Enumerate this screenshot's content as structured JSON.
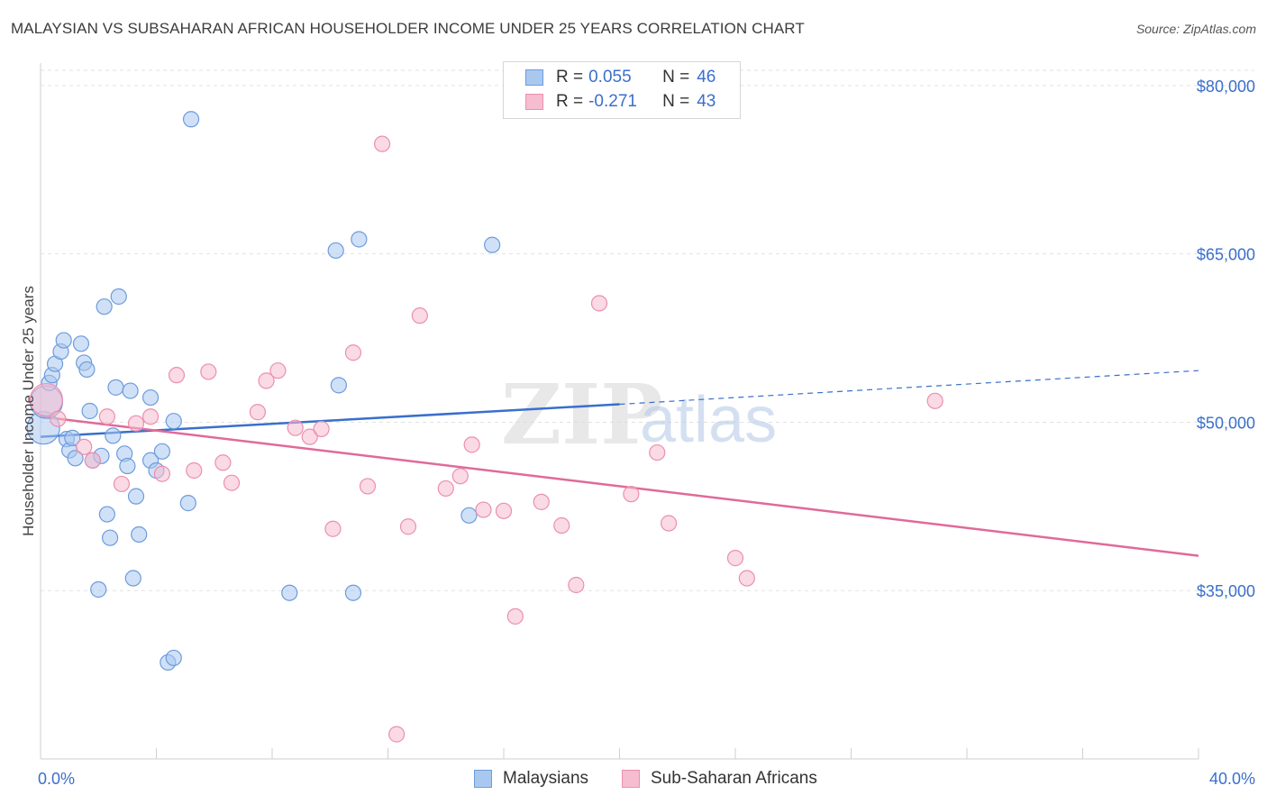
{
  "title": "MALAYSIAN VS SUBSAHARAN AFRICAN HOUSEHOLDER INCOME UNDER 25 YEARS CORRELATION CHART",
  "source": "Source: ZipAtlas.com",
  "watermark": {
    "zip": "ZIP",
    "atlas": "atlas"
  },
  "legend": {
    "malaysians": {
      "r_label": "R =",
      "r_value": "0.055",
      "n_label": "N =",
      "n_value": "46"
    },
    "subsaharan": {
      "r_label": "R =",
      "r_value": "-0.271",
      "n_label": "N =",
      "n_value": "43"
    }
  },
  "bottom_legend": {
    "malaysians": "Malaysians",
    "subsaharan": "Sub-Saharan Africans"
  },
  "colors": {
    "malaysians_fill": "#a9c8f0",
    "malaysians_stroke": "#6d9bdc",
    "malaysians_line": "#3a6fcc",
    "subsaharan_fill": "#f6bcd0",
    "subsaharan_stroke": "#ec8fae",
    "subsaharan_line": "#e06a98",
    "axis_label": "#3a6fcc",
    "grid": "#e2e2e2"
  },
  "chart_data": {
    "type": "scatter",
    "title": "MALAYSIAN VS SUBSAHARAN AFRICAN HOUSEHOLDER INCOME UNDER 25 YEARS CORRELATION CHART",
    "xlabel": "",
    "ylabel": "Householder Income Under 25 years",
    "xlim": [
      0,
      40
    ],
    "ylim": [
      20000,
      82000
    ],
    "x_tick_labels": [
      "0.0%",
      "40.0%"
    ],
    "y_ticks": [
      35000,
      50000,
      65000,
      80000
    ],
    "y_tick_labels": [
      "$35,000",
      "$50,000",
      "$65,000",
      "$80,000"
    ],
    "grid": "horizontal dashed",
    "legend_position": "top-center",
    "series": [
      {
        "name": "Malaysians",
        "points": [
          [
            0.1,
            49500
          ],
          [
            0.2,
            51800
          ],
          [
            0.3,
            53500
          ],
          [
            0.4,
            54200
          ],
          [
            0.5,
            55200
          ],
          [
            0.7,
            56300
          ],
          [
            0.8,
            57300
          ],
          [
            0.9,
            48500
          ],
          [
            1.0,
            47500
          ],
          [
            1.1,
            48600
          ],
          [
            1.2,
            46800
          ],
          [
            1.4,
            57000
          ],
          [
            1.5,
            55300
          ],
          [
            1.6,
            54700
          ],
          [
            1.7,
            51000
          ],
          [
            1.8,
            46600
          ],
          [
            2.0,
            35100
          ],
          [
            2.1,
            47000
          ],
          [
            2.2,
            60300
          ],
          [
            2.3,
            41800
          ],
          [
            2.4,
            39700
          ],
          [
            2.5,
            48800
          ],
          [
            2.6,
            53100
          ],
          [
            2.7,
            61200
          ],
          [
            2.9,
            47200
          ],
          [
            3.0,
            46100
          ],
          [
            3.1,
            52800
          ],
          [
            3.2,
            36100
          ],
          [
            3.3,
            43400
          ],
          [
            3.4,
            40000
          ],
          [
            3.8,
            52200
          ],
          [
            3.8,
            46600
          ],
          [
            4.0,
            45700
          ],
          [
            4.2,
            47400
          ],
          [
            4.4,
            28600
          ],
          [
            4.6,
            29000
          ],
          [
            4.6,
            50100
          ],
          [
            5.1,
            42800
          ],
          [
            5.2,
            77000
          ],
          [
            8.6,
            34800
          ],
          [
            10.2,
            65300
          ],
          [
            10.3,
            53300
          ],
          [
            10.8,
            34800
          ],
          [
            11.0,
            66300
          ],
          [
            14.8,
            41700
          ],
          [
            15.6,
            65800
          ]
        ],
        "trend": {
          "x": [
            0,
            20
          ],
          "y": [
            48700,
            51600
          ]
        },
        "trend_extension": {
          "x": [
            20,
            40
          ],
          "y": [
            51600,
            54600
          ]
        }
      },
      {
        "name": "Sub-Saharan Africans",
        "points": [
          [
            0.2,
            52000
          ],
          [
            0.6,
            50300
          ],
          [
            1.5,
            47800
          ],
          [
            1.8,
            46600
          ],
          [
            2.3,
            50500
          ],
          [
            2.8,
            44500
          ],
          [
            3.3,
            49900
          ],
          [
            3.8,
            50500
          ],
          [
            4.2,
            45400
          ],
          [
            4.7,
            54200
          ],
          [
            5.3,
            45700
          ],
          [
            5.8,
            54500
          ],
          [
            6.3,
            46400
          ],
          [
            6.6,
            44600
          ],
          [
            7.5,
            50900
          ],
          [
            7.8,
            53700
          ],
          [
            8.2,
            54600
          ],
          [
            8.8,
            49500
          ],
          [
            9.3,
            48700
          ],
          [
            9.7,
            49400
          ],
          [
            10.1,
            40500
          ],
          [
            10.8,
            56200
          ],
          [
            11.3,
            44300
          ],
          [
            11.8,
            74800
          ],
          [
            12.3,
            22200
          ],
          [
            12.7,
            40700
          ],
          [
            13.1,
            59500
          ],
          [
            14.0,
            44100
          ],
          [
            14.5,
            45200
          ],
          [
            14.9,
            48000
          ],
          [
            15.3,
            42200
          ],
          [
            16.0,
            42100
          ],
          [
            16.4,
            32700
          ],
          [
            17.3,
            42900
          ],
          [
            18.0,
            40800
          ],
          [
            18.5,
            35500
          ],
          [
            19.3,
            60600
          ],
          [
            20.4,
            43600
          ],
          [
            21.3,
            47300
          ],
          [
            21.7,
            41000
          ],
          [
            24.0,
            37900
          ],
          [
            24.4,
            36100
          ],
          [
            30.9,
            51900
          ]
        ],
        "trend": {
          "x": [
            0,
            40
          ],
          "y": [
            50500,
            38100
          ]
        }
      }
    ]
  }
}
